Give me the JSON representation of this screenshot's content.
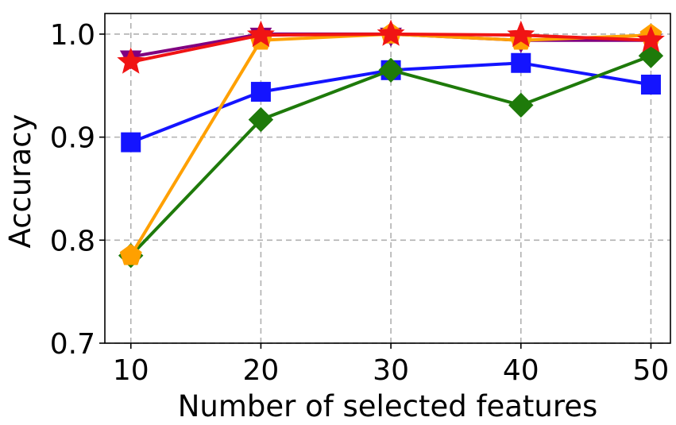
{
  "chart_data": {
    "type": "line",
    "title": "",
    "xlabel": "Number of selected features",
    "ylabel": "Accuracy",
    "x": [
      10,
      20,
      30,
      40,
      50
    ],
    "xticks": [
      "10",
      "20",
      "30",
      "40",
      "50"
    ],
    "yticks": [
      "0.7",
      "0.8",
      "0.9",
      "1.0"
    ],
    "xlim": [
      8,
      51.5
    ],
    "ylim": [
      0.7,
      1.02
    ],
    "grid": true,
    "series": [
      {
        "color": "#800080",
        "marker": "triangle-down",
        "values": [
          0.978,
          1.0,
          1.0,
          0.994,
          0.994
        ]
      },
      {
        "color": "#1414ff",
        "marker": "square",
        "values": [
          0.895,
          0.944,
          0.965,
          0.972,
          0.951
        ]
      },
      {
        "color": "#1e7a0a",
        "marker": "diamond",
        "values": [
          0.785,
          0.917,
          0.965,
          0.931,
          0.979
        ]
      },
      {
        "color": "#ffa000",
        "marker": "pentagon",
        "values": [
          0.785,
          0.994,
          1.0,
          0.994,
          0.999
        ]
      },
      {
        "color": "#f01414",
        "marker": "star",
        "values": [
          0.973,
          0.999,
          1.0,
          0.999,
          0.994
        ]
      }
    ]
  }
}
